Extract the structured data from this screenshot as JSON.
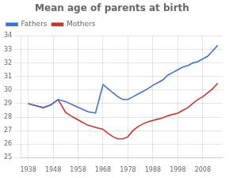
{
  "chart_data": {
    "type": "line",
    "title": "Mean age of parents at birth",
    "x": [
      1938,
      1941,
      1944,
      1947,
      1950,
      1953,
      1956,
      1959,
      1962,
      1965,
      1968,
      1970,
      1972,
      1974,
      1976,
      1978,
      1980,
      1982,
      1984,
      1986,
      1988,
      1990,
      1992,
      1994,
      1996,
      1998,
      2000,
      2002,
      2004,
      2006,
      2008,
      2010,
      2012,
      2014
    ],
    "series": [
      {
        "name": "Fathers",
        "color": "#4472c4",
        "values": [
          29.0,
          28.85,
          28.7,
          28.9,
          29.3,
          29.15,
          28.9,
          28.65,
          28.4,
          28.3,
          30.4,
          30.1,
          29.8,
          29.5,
          29.3,
          29.3,
          29.5,
          29.7,
          29.9,
          30.1,
          30.35,
          30.55,
          30.75,
          31.1,
          31.3,
          31.5,
          31.7,
          31.8,
          32.0,
          32.1,
          32.3,
          32.5,
          32.9,
          33.3
        ]
      },
      {
        "name": "Mothers",
        "color": "#c0392b",
        "values": [
          29.0,
          28.85,
          28.7,
          28.9,
          29.3,
          28.35,
          28.0,
          27.7,
          27.4,
          27.25,
          27.1,
          26.8,
          26.55,
          26.4,
          26.4,
          26.55,
          27.0,
          27.3,
          27.5,
          27.65,
          27.75,
          27.85,
          27.95,
          28.1,
          28.2,
          28.3,
          28.5,
          28.7,
          29.0,
          29.3,
          29.5,
          29.8,
          30.1,
          30.5
        ]
      }
    ],
    "xlim": [
      1935,
      2016
    ],
    "ylim": [
      25,
      34
    ],
    "xticks": [
      1938,
      1948,
      1958,
      1968,
      1978,
      1988,
      1998,
      2008
    ],
    "yticks": [
      25,
      26,
      27,
      28,
      29,
      30,
      31,
      32,
      33,
      34
    ],
    "grid": true,
    "legend": "upper left"
  }
}
